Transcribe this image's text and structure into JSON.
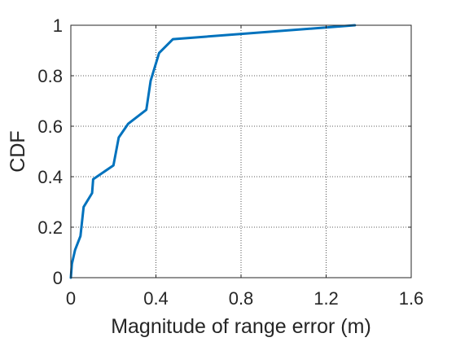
{
  "chart_data": {
    "type": "line",
    "title": "",
    "xlabel": "Magnitude of range error (m)",
    "ylabel": "CDF",
    "xlim": [
      0,
      1.6
    ],
    "ylim": [
      0,
      1
    ],
    "xticks": [
      0,
      0.4,
      0.8,
      1.2,
      1.6
    ],
    "xtick_labels": [
      "0",
      "0.4",
      "0.8",
      "1.2",
      "1.6"
    ],
    "yticks": [
      0,
      0.2,
      0.4,
      0.6,
      0.8,
      1
    ],
    "ytick_labels": [
      "0",
      "0.2",
      "0.4",
      "0.6",
      "0.8",
      "1"
    ],
    "grid": true,
    "series": [
      {
        "color": "#0072BD",
        "x": [
          0,
          0.005,
          0.02,
          0.045,
          0.06,
          0.1,
          0.105,
          0.2,
          0.225,
          0.27,
          0.355,
          0.375,
          0.415,
          0.48,
          1.335
        ],
        "y": [
          0,
          0.055,
          0.11,
          0.165,
          0.28,
          0.335,
          0.39,
          0.445,
          0.555,
          0.61,
          0.665,
          0.78,
          0.89,
          0.945,
          1.0
        ]
      }
    ]
  }
}
